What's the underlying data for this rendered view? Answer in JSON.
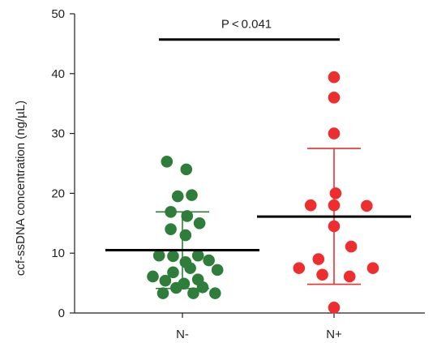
{
  "chart_data": {
    "type": "scatter",
    "ylabel": "ccf-ssDNA concentration (ng/µL)",
    "xlabel": "",
    "ylim": [
      0,
      50
    ],
    "yticks": [
      0,
      10,
      20,
      30,
      40,
      50
    ],
    "categories": [
      "N-",
      "N+"
    ],
    "significance": {
      "label": "P < 0.041",
      "y": 45.7,
      "from": "N-",
      "to": "N+"
    },
    "series": [
      {
        "category": "N-",
        "color": "#2e7d3a",
        "mean": 10.5,
        "sd_upper": 16.9,
        "sd_lower": 4.1,
        "points": [
          {
            "x": -0.25,
            "y": 3.3
          },
          {
            "x": -0.08,
            "y": 4.2
          },
          {
            "x": 0.02,
            "y": 4.9
          },
          {
            "x": 0.14,
            "y": 3.3
          },
          {
            "x": 0.26,
            "y": 4.3
          },
          {
            "x": 0.42,
            "y": 3.3
          },
          {
            "x": -0.38,
            "y": 6.1
          },
          {
            "x": -0.22,
            "y": 5.4
          },
          {
            "x": 0.2,
            "y": 5.6
          },
          {
            "x": 0.45,
            "y": 7.2
          },
          {
            "x": -0.12,
            "y": 6.8
          },
          {
            "x": 0.1,
            "y": 7.5
          },
          {
            "x": -0.3,
            "y": 9.6
          },
          {
            "x": -0.12,
            "y": 9.5
          },
          {
            "x": 0.04,
            "y": 8.5
          },
          {
            "x": 0.2,
            "y": 9.6
          },
          {
            "x": 0.34,
            "y": 8.8
          },
          {
            "x": 0.04,
            "y": 13.0
          },
          {
            "x": -0.15,
            "y": 14.0
          },
          {
            "x": 0.06,
            "y": 16.2
          },
          {
            "x": 0.22,
            "y": 15.0
          },
          {
            "x": -0.15,
            "y": 16.9
          },
          {
            "x": -0.06,
            "y": 19.5
          },
          {
            "x": 0.12,
            "y": 19.7
          },
          {
            "x": -0.2,
            "y": 25.3
          },
          {
            "x": 0.05,
            "y": 24.0
          }
        ]
      },
      {
        "category": "N+",
        "color": "#ee2e2e",
        "mean": 16.1,
        "sd_upper": 27.5,
        "sd_lower": 4.8,
        "points": [
          {
            "x": 0.0,
            "y": 0.9
          },
          {
            "x": -0.2,
            "y": 9.0
          },
          {
            "x": -0.45,
            "y": 7.5
          },
          {
            "x": 0.2,
            "y": 6.1
          },
          {
            "x": -0.15,
            "y": 6.4
          },
          {
            "x": 0.5,
            "y": 7.5
          },
          {
            "x": 0.22,
            "y": 11.1
          },
          {
            "x": 0.0,
            "y": 14.5
          },
          {
            "x": -0.3,
            "y": 18.0
          },
          {
            "x": 0.0,
            "y": 18.0
          },
          {
            "x": 0.02,
            "y": 20.0
          },
          {
            "x": 0.42,
            "y": 17.9
          },
          {
            "x": 0.0,
            "y": 30.0
          },
          {
            "x": 0.0,
            "y": 36.0
          },
          {
            "x": 0.0,
            "y": 39.4
          }
        ]
      }
    ]
  }
}
